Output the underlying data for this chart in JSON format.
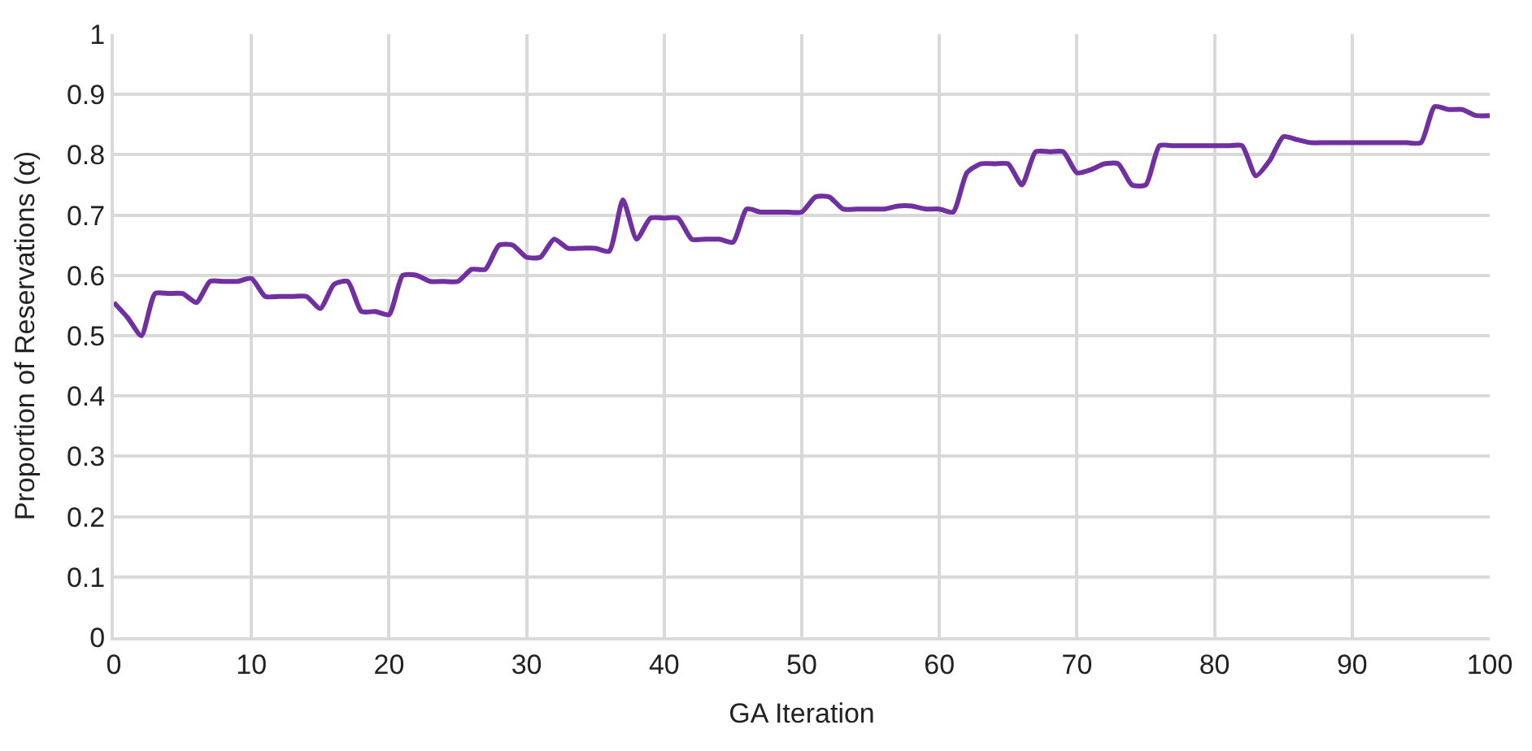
{
  "chart_data": {
    "type": "line",
    "xlabel": "GA Iteration",
    "ylabel": "Proportion of Reservations (α)",
    "x": [
      0,
      1,
      2,
      3,
      4,
      5,
      6,
      7,
      8,
      9,
      10,
      11,
      12,
      13,
      14,
      15,
      16,
      17,
      18,
      19,
      20,
      21,
      22,
      23,
      24,
      25,
      26,
      27,
      28,
      29,
      30,
      31,
      32,
      33,
      34,
      35,
      36,
      37,
      38,
      39,
      40,
      41,
      42,
      43,
      44,
      45,
      46,
      47,
      48,
      49,
      50,
      51,
      52,
      53,
      54,
      55,
      56,
      57,
      58,
      59,
      60,
      61,
      62,
      63,
      64,
      65,
      66,
      67,
      68,
      69,
      70,
      71,
      72,
      73,
      74,
      75,
      76,
      77,
      78,
      79,
      80,
      81,
      82,
      83,
      84,
      85,
      86,
      87,
      88,
      89,
      90,
      91,
      92,
      93,
      94,
      95,
      96,
      97,
      98,
      99,
      100
    ],
    "series": [
      {
        "color": "#7030a0",
        "values": [
          0.555,
          0.53,
          0.5,
          0.57,
          0.57,
          0.57,
          0.555,
          0.59,
          0.59,
          0.59,
          0.595,
          0.565,
          0.565,
          0.565,
          0.565,
          0.545,
          0.585,
          0.59,
          0.54,
          0.54,
          0.535,
          0.6,
          0.6,
          0.59,
          0.59,
          0.59,
          0.61,
          0.61,
          0.65,
          0.65,
          0.63,
          0.63,
          0.66,
          0.645,
          0.645,
          0.645,
          0.64,
          0.725,
          0.66,
          0.695,
          0.695,
          0.695,
          0.66,
          0.66,
          0.66,
          0.655,
          0.71,
          0.705,
          0.705,
          0.705,
          0.705,
          0.73,
          0.73,
          0.71,
          0.71,
          0.71,
          0.71,
          0.715,
          0.715,
          0.71,
          0.71,
          0.705,
          0.77,
          0.785,
          0.785,
          0.785,
          0.75,
          0.805,
          0.805,
          0.805,
          0.77,
          0.775,
          0.785,
          0.785,
          0.75,
          0.75,
          0.815,
          0.815,
          0.815,
          0.815,
          0.815,
          0.815,
          0.815,
          0.765,
          0.79,
          0.83,
          0.825,
          0.82,
          0.82,
          0.82,
          0.82,
          0.82,
          0.82,
          0.82,
          0.82,
          0.82,
          0.88,
          0.875,
          0.875,
          0.865,
          0.865
        ]
      }
    ],
    "xlim": [
      0,
      100
    ],
    "xticks": [
      0,
      10,
      20,
      30,
      40,
      50,
      60,
      70,
      80,
      90,
      100
    ],
    "ylim": [
      0,
      1
    ],
    "yticks": [
      0,
      0.1,
      0.2,
      0.3,
      0.4,
      0.5,
      0.6,
      0.7,
      0.8,
      0.9,
      1
    ],
    "grid": true,
    "marker": "none",
    "line_style": "solid"
  }
}
